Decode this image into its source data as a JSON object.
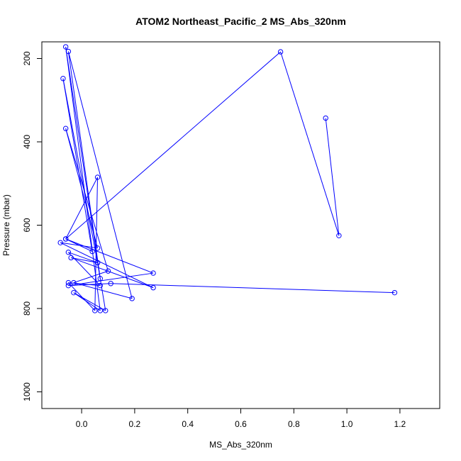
{
  "chart_data": {
    "type": "line",
    "title": "ATOM2 Northeast_Pacific_2 MS_Abs_320nm",
    "xlabel": "MS_Abs_320nm",
    "ylabel": "Pressure (mbar)",
    "xlim": [
      -0.15,
      1.35
    ],
    "ylim": [
      1040,
      160
    ],
    "y_inverted": true,
    "x_ticks": [
      0.0,
      0.2,
      0.4,
      0.6,
      0.8,
      1.0,
      1.2
    ],
    "x_tick_labels": [
      "0.0",
      "0.2",
      "0.4",
      "0.6",
      "0.8",
      "1.0",
      "1.2"
    ],
    "y_ticks": [
      200,
      400,
      600,
      800,
      1000
    ],
    "y_tick_labels": [
      "200",
      "400",
      "600",
      "800",
      "1000"
    ],
    "grid": false,
    "legend": "none",
    "series": [
      {
        "color": "#0000ff",
        "marker": "open-circle",
        "points": [
          [
            1.18,
            762
          ],
          [
            0.11,
            740
          ],
          [
            -0.05,
            745
          ],
          [
            0.27,
            715
          ],
          [
            -0.06,
            633
          ],
          [
            0.04,
            663
          ],
          [
            -0.07,
            248
          ],
          [
            0.06,
            690
          ],
          [
            -0.04,
            678
          ],
          [
            0.27,
            750
          ],
          [
            -0.08,
            642
          ],
          [
            0.06,
            655
          ],
          [
            -0.06,
            368
          ],
          [
            0.1,
            710
          ],
          [
            -0.03,
            738
          ],
          [
            0.19,
            776
          ],
          [
            -0.05,
            183
          ],
          [
            0.07,
            728
          ],
          [
            -0.06,
            172
          ],
          [
            0.07,
            805
          ],
          [
            -0.03,
            762
          ],
          [
            0.09,
            805
          ],
          [
            0.06,
            690
          ],
          [
            -0.05,
            665
          ],
          [
            0.07,
            745
          ],
          [
            -0.05,
            738
          ],
          [
            0.05,
            805
          ],
          [
            0.06,
            485
          ],
          [
            -0.06,
            633
          ],
          [
            0.75,
            184
          ],
          [
            0.97,
            625
          ],
          [
            0.92,
            343
          ]
        ]
      }
    ]
  }
}
